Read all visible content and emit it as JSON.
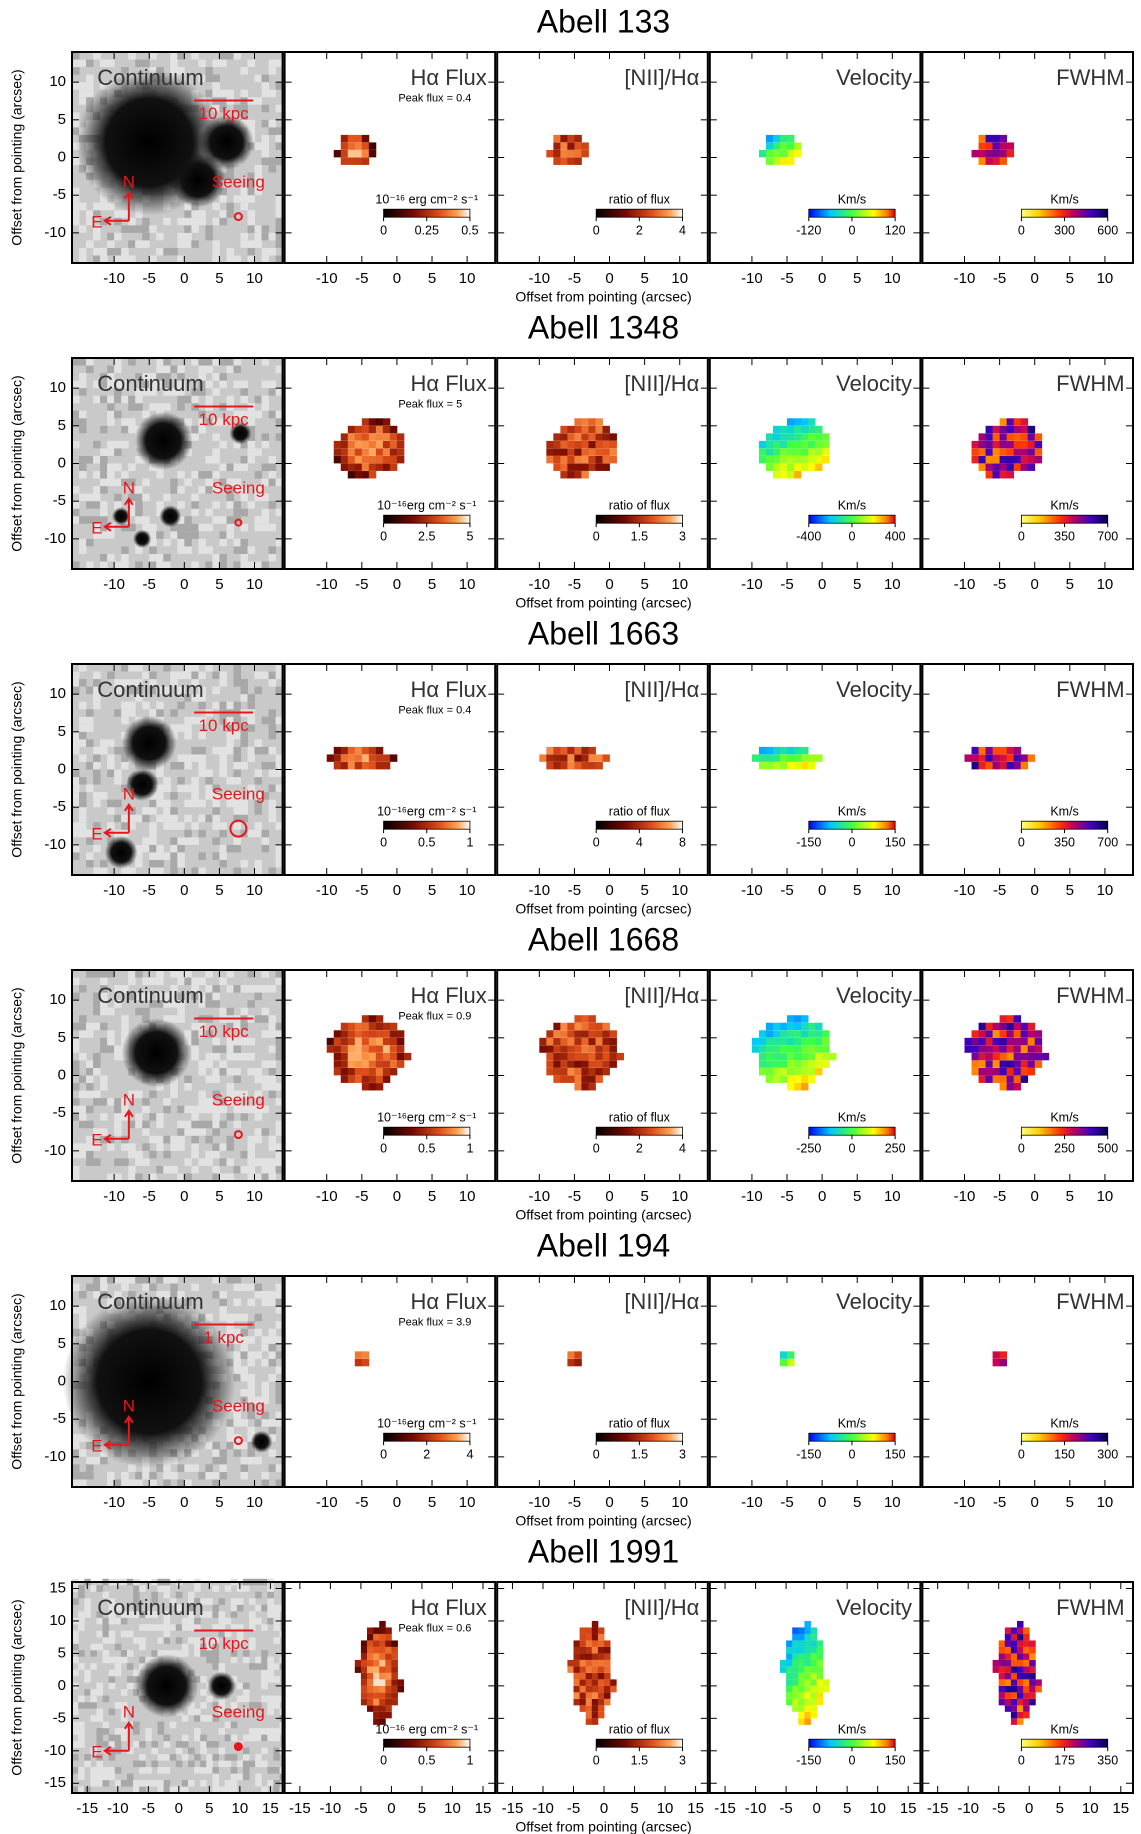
{
  "figure": {
    "xlabel": "Offset from pointing (arcsec)",
    "ylabel": "Offset from pointing (arcsec)",
    "panel_titles": [
      "Continuum",
      "Hα Flux",
      "[NII]/Hα",
      "Velocity",
      "FWHM"
    ],
    "north": "N",
    "east": "E",
    "seeing": "Seeing",
    "rows": [
      {
        "title": "Abell 133",
        "scale_bar": "10 kpc",
        "peak_flux": "Peak flux = 0.4",
        "xlim": [
          -16,
          14
        ],
        "ylim": [
          -14,
          14
        ],
        "xticks": [
          -10,
          -5,
          0,
          5,
          10
        ],
        "yticks": [
          -10,
          -5,
          0,
          5,
          10
        ],
        "colorbars": [
          {
            "label": "10⁻¹⁶ erg cm⁻² s⁻¹",
            "lim": [
              0,
              0.5
            ],
            "ticks": [
              0,
              0.25,
              0.5
            ]
          },
          {
            "label": "ratio of flux",
            "lim": [
              0,
              4
            ],
            "ticks": [
              0,
              2,
              4
            ]
          },
          {
            "label": "Km/s",
            "lim": [
              -120,
              120
            ],
            "ticks": [
              -120,
              0,
              120
            ]
          },
          {
            "label": "Km/s",
            "lim": [
              0,
              600
            ],
            "ticks": [
              0,
              300,
              600
            ]
          }
        ]
      },
      {
        "title": "Abell 1348",
        "scale_bar": "10 kpc",
        "peak_flux": "Peak flux = 5",
        "xlim": [
          -16,
          14
        ],
        "ylim": [
          -14,
          14
        ],
        "xticks": [
          -10,
          -5,
          0,
          5,
          10
        ],
        "yticks": [
          -10,
          -5,
          0,
          5,
          10
        ],
        "colorbars": [
          {
            "label": "10⁻¹⁶erg cm⁻² s⁻¹",
            "lim": [
              0,
              5
            ],
            "ticks": [
              0,
              2.5,
              5
            ]
          },
          {
            "label": "ratio of flux",
            "lim": [
              0,
              3
            ],
            "ticks": [
              0,
              1.5,
              3
            ]
          },
          {
            "label": "Km/s",
            "lim": [
              -400,
              400
            ],
            "ticks": [
              -400,
              0,
              400
            ]
          },
          {
            "label": "Km/s",
            "lim": [
              0,
              700
            ],
            "ticks": [
              0,
              350,
              700
            ]
          }
        ]
      },
      {
        "title": "Abell 1663",
        "scale_bar": "10 kpc",
        "peak_flux": "Peak flux = 0.4",
        "xlim": [
          -16,
          14
        ],
        "ylim": [
          -14,
          14
        ],
        "xticks": [
          -10,
          -5,
          0,
          5,
          10
        ],
        "yticks": [
          -10,
          -5,
          0,
          5,
          10
        ],
        "colorbars": [
          {
            "label": "10⁻¹⁶erg cm⁻² s⁻¹",
            "lim": [
              0,
              1
            ],
            "ticks": [
              0,
              0.5,
              1
            ]
          },
          {
            "label": "ratio of flux",
            "lim": [
              0,
              8
            ],
            "ticks": [
              0,
              4,
              8
            ]
          },
          {
            "label": "Km/s",
            "lim": [
              -150,
              150
            ],
            "ticks": [
              -150,
              0,
              150
            ]
          },
          {
            "label": "Km/s",
            "lim": [
              0,
              700
            ],
            "ticks": [
              0,
              350,
              700
            ]
          }
        ]
      },
      {
        "title": "Abell 1668",
        "scale_bar": "10 kpc",
        "peak_flux": "Peak flux = 0.9",
        "xlim": [
          -16,
          14
        ],
        "ylim": [
          -14,
          14
        ],
        "xticks": [
          -10,
          -5,
          0,
          5,
          10
        ],
        "yticks": [
          -10,
          -5,
          0,
          5,
          10
        ],
        "colorbars": [
          {
            "label": "10⁻¹⁶erg cm⁻² s⁻¹",
            "lim": [
              0,
              1
            ],
            "ticks": [
              0,
              0.5,
              1
            ]
          },
          {
            "label": "ratio of flux",
            "lim": [
              0,
              4
            ],
            "ticks": [
              0,
              2,
              4
            ]
          },
          {
            "label": "Km/s",
            "lim": [
              -250,
              250
            ],
            "ticks": [
              -250,
              0,
              250
            ]
          },
          {
            "label": "Km/s",
            "lim": [
              0,
              500
            ],
            "ticks": [
              0,
              250,
              500
            ]
          }
        ]
      },
      {
        "title": "Abell 194",
        "scale_bar": "1 kpc",
        "peak_flux": "Peak flux = 3.9",
        "xlim": [
          -16,
          14
        ],
        "ylim": [
          -14,
          14
        ],
        "xticks": [
          -10,
          -5,
          0,
          5,
          10
        ],
        "yticks": [
          -10,
          -5,
          0,
          5,
          10
        ],
        "colorbars": [
          {
            "label": "10⁻¹⁶erg cm⁻² s⁻¹",
            "lim": [
              0,
              4
            ],
            "ticks": [
              0,
              2,
              4
            ]
          },
          {
            "label": "ratio of flux",
            "lim": [
              0,
              3
            ],
            "ticks": [
              0,
              1.5,
              3
            ]
          },
          {
            "label": "Km/s",
            "lim": [
              -150,
              150
            ],
            "ticks": [
              -150,
              0,
              150
            ]
          },
          {
            "label": "Km/s",
            "lim": [
              0,
              300
            ],
            "ticks": [
              0,
              150,
              300
            ]
          }
        ]
      },
      {
        "title": "Abell 1991",
        "scale_bar": "10 kpc",
        "peak_flux": "Peak flux = 0.6",
        "xlim": [
          -17.5,
          17
        ],
        "ylim": [
          -16.5,
          16
        ],
        "xticks": [
          -15,
          -10,
          -5,
          0,
          5,
          10,
          15
        ],
        "yticks": [
          -15,
          -10,
          -5,
          0,
          5,
          10,
          15
        ],
        "colorbars": [
          {
            "label": "10⁻¹⁶ erg cm⁻² s⁻¹",
            "lim": [
              0,
              1
            ],
            "ticks": [
              0,
              0.5,
              1
            ]
          },
          {
            "label": "ratio of flux",
            "lim": [
              0,
              3
            ],
            "ticks": [
              0,
              1.5,
              3
            ]
          },
          {
            "label": "Km/s",
            "lim": [
              -150,
              150
            ],
            "ticks": [
              -150,
              0,
              150
            ]
          },
          {
            "label": "Km/s",
            "lim": [
              0,
              350
            ],
            "ticks": [
              0,
              175,
              350
            ]
          }
        ]
      }
    ]
  }
}
